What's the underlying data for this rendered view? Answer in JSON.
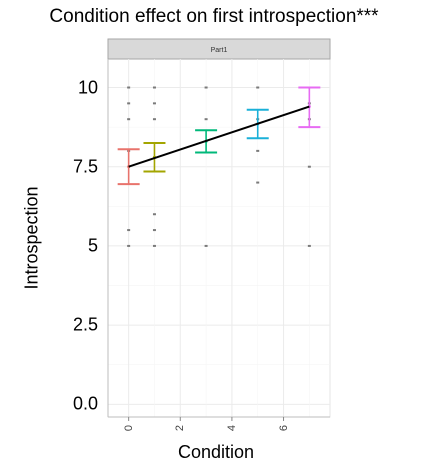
{
  "chart_data": {
    "type": "scatter",
    "title": "Condition effect on first introspection***",
    "facet_label": "Part1",
    "xlabel": "Condition",
    "ylabel": "Introspection",
    "xlim": [
      -0.8,
      7.8
    ],
    "ylim": [
      -0.4,
      10.9
    ],
    "x_ticks": [
      0,
      2,
      4,
      6
    ],
    "y_ticks": [
      0.0,
      2.5,
      5,
      7.5,
      10
    ],
    "y_tick_labels": [
      "0.0",
      "2.5",
      "5",
      "7.5",
      "10"
    ],
    "grid": true,
    "series": [
      {
        "x": 0,
        "mean": 7.5,
        "lower": 6.95,
        "upper": 8.05,
        "color": "#e8736c"
      },
      {
        "x": 1,
        "mean": 7.8,
        "lower": 7.35,
        "upper": 8.25,
        "color": "#a3a500"
      },
      {
        "x": 3,
        "mean": 8.3,
        "lower": 7.95,
        "upper": 8.65,
        "color": "#00b87a"
      },
      {
        "x": 5,
        "mean": 8.85,
        "lower": 8.4,
        "upper": 9.3,
        "color": "#1ab0d8"
      },
      {
        "x": 7,
        "mean": 9.4,
        "lower": 8.75,
        "upper": 10.0,
        "color": "#e76bf3"
      }
    ],
    "trend_line": {
      "x": [
        0,
        7
      ],
      "y": [
        7.5,
        9.4
      ],
      "color": "#000000"
    },
    "raw_points": [
      {
        "x": 0,
        "y": 10
      },
      {
        "x": 0,
        "y": 9.5
      },
      {
        "x": 0,
        "y": 9
      },
      {
        "x": 0,
        "y": 8
      },
      {
        "x": 0,
        "y": 5.5
      },
      {
        "x": 0,
        "y": 5
      },
      {
        "x": 1,
        "y": 10
      },
      {
        "x": 1,
        "y": 9.5
      },
      {
        "x": 1,
        "y": 9
      },
      {
        "x": 1,
        "y": 6
      },
      {
        "x": 1,
        "y": 5.5
      },
      {
        "x": 1,
        "y": 5
      },
      {
        "x": 3,
        "y": 10
      },
      {
        "x": 3,
        "y": 9
      },
      {
        "x": 3,
        "y": 5
      },
      {
        "x": 5,
        "y": 10
      },
      {
        "x": 5,
        "y": 9
      },
      {
        "x": 5,
        "y": 8
      },
      {
        "x": 5,
        "y": 7
      },
      {
        "x": 7,
        "y": 10
      },
      {
        "x": 7,
        "y": 9.5
      },
      {
        "x": 7,
        "y": 9
      },
      {
        "x": 7,
        "y": 7.5
      },
      {
        "x": 7,
        "y": 5
      }
    ]
  }
}
